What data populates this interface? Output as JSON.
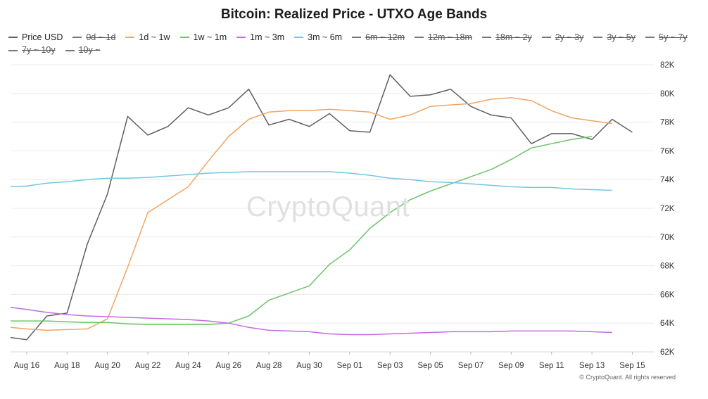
{
  "chart_data": {
    "type": "line",
    "title": "Bitcoin: Realized Price - UTXO Age Bands",
    "x_ticks": [
      "Aug 16",
      "Aug 18",
      "Aug 20",
      "Aug 22",
      "Aug 24",
      "Aug 26",
      "Aug 28",
      "Aug 30",
      "Sep 01",
      "Sep 03",
      "Sep 05",
      "Sep 07",
      "Sep 09",
      "Sep 11",
      "Sep 13",
      "Sep 15"
    ],
    "x_range": [
      -0.4,
      15.55
    ],
    "y_ticks": [
      "62K",
      "64K",
      "66K",
      "68K",
      "70K",
      "72K",
      "74K",
      "76K",
      "78K",
      "80K",
      "82K"
    ],
    "ylim": [
      62000,
      82000
    ],
    "grid": "horizontal",
    "legend_position": "top-left",
    "legend": [
      {
        "name": "Price USD",
        "color": "#5f5f5f",
        "visible": true
      },
      {
        "name": "0d ~ 1d",
        "color": "#777777",
        "visible": false
      },
      {
        "name": "1d ~ 1w",
        "color": "#f2a462",
        "visible": true
      },
      {
        "name": "1w ~ 1m",
        "color": "#6dc36a",
        "visible": true
      },
      {
        "name": "1m ~ 3m",
        "color": "#c46be0",
        "visible": true
      },
      {
        "name": "3m ~ 6m",
        "color": "#72c6e4",
        "visible": true
      },
      {
        "name": "6m ~ 12m",
        "color": "#777777",
        "visible": false
      },
      {
        "name": "12m ~ 18m",
        "color": "#777777",
        "visible": false
      },
      {
        "name": "18m ~ 2y",
        "color": "#777777",
        "visible": false
      },
      {
        "name": "2y ~ 3y",
        "color": "#777777",
        "visible": false
      },
      {
        "name": "3y ~ 5y",
        "color": "#777777",
        "visible": false
      },
      {
        "name": "5y ~ 7y",
        "color": "#777777",
        "visible": false
      },
      {
        "name": "7y ~ 10y",
        "color": "#777777",
        "visible": false
      },
      {
        "name": "10y ~",
        "color": "#777777",
        "visible": false
      }
    ],
    "x": [
      -0.4,
      0,
      0.5,
      1,
      1.5,
      2,
      2.5,
      3,
      3.5,
      4,
      4.5,
      5,
      5.5,
      6,
      6.5,
      7,
      7.5,
      8,
      8.5,
      9,
      9.5,
      10,
      10.5,
      11,
      11.5,
      12,
      12.5,
      13,
      13.5,
      14,
      14.5,
      15
    ],
    "series": [
      {
        "name": "Price USD",
        "color": "#5f5f5f",
        "values": [
          63000,
          62850,
          64500,
          64700,
          69500,
          73000,
          78400,
          77100,
          77700,
          79000,
          78500,
          79000,
          80300,
          77800,
          78200,
          77700,
          78600,
          77400,
          77300,
          81300,
          79800,
          79900,
          80300,
          79100,
          78500,
          78300,
          76500,
          77200,
          77200,
          76800,
          78200,
          77300
        ]
      },
      {
        "name": "1d ~ 1w",
        "color": "#f2a462",
        "values": [
          63700,
          63600,
          63500,
          63550,
          63600,
          64300,
          67900,
          71700,
          72600,
          73500,
          75300,
          77000,
          78200,
          78700,
          78800,
          78800,
          78900,
          78800,
          78700,
          78200,
          78500,
          79100,
          79200,
          79300,
          79600,
          79700,
          79500,
          78800,
          78300,
          78100,
          77900,
          null
        ]
      },
      {
        "name": "1w ~ 1m",
        "color": "#6dc36a",
        "values": [
          64150,
          64150,
          64150,
          64100,
          64050,
          64050,
          63950,
          63900,
          63900,
          63900,
          63900,
          64000,
          64500,
          65600,
          66100,
          66600,
          68100,
          69100,
          70600,
          71700,
          72600,
          73200,
          73700,
          74200,
          74700,
          75400,
          76200,
          76500,
          76800,
          77000,
          null,
          null
        ]
      },
      {
        "name": "1m ~ 3m",
        "color": "#c46be0",
        "values": [
          65100,
          64950,
          64750,
          64600,
          64500,
          64450,
          64400,
          64350,
          64300,
          64250,
          64150,
          64000,
          63700,
          63500,
          63450,
          63400,
          63250,
          63200,
          63200,
          63250,
          63300,
          63350,
          63400,
          63400,
          63400,
          63450,
          63450,
          63450,
          63450,
          63400,
          63350,
          null
        ]
      },
      {
        "name": "3m ~ 6m",
        "color": "#72c6e4",
        "values": [
          73500,
          73550,
          73750,
          73850,
          74000,
          74100,
          74100,
          74150,
          74250,
          74350,
          74450,
          74500,
          74550,
          74550,
          74550,
          74550,
          74550,
          74450,
          74300,
          74100,
          74000,
          73850,
          73800,
          73700,
          73600,
          73500,
          73450,
          73450,
          73350,
          73300,
          73250,
          null
        ]
      }
    ]
  },
  "watermark": "CryptoQuant",
  "credit": "© CryptoQuant. All rights reserved"
}
